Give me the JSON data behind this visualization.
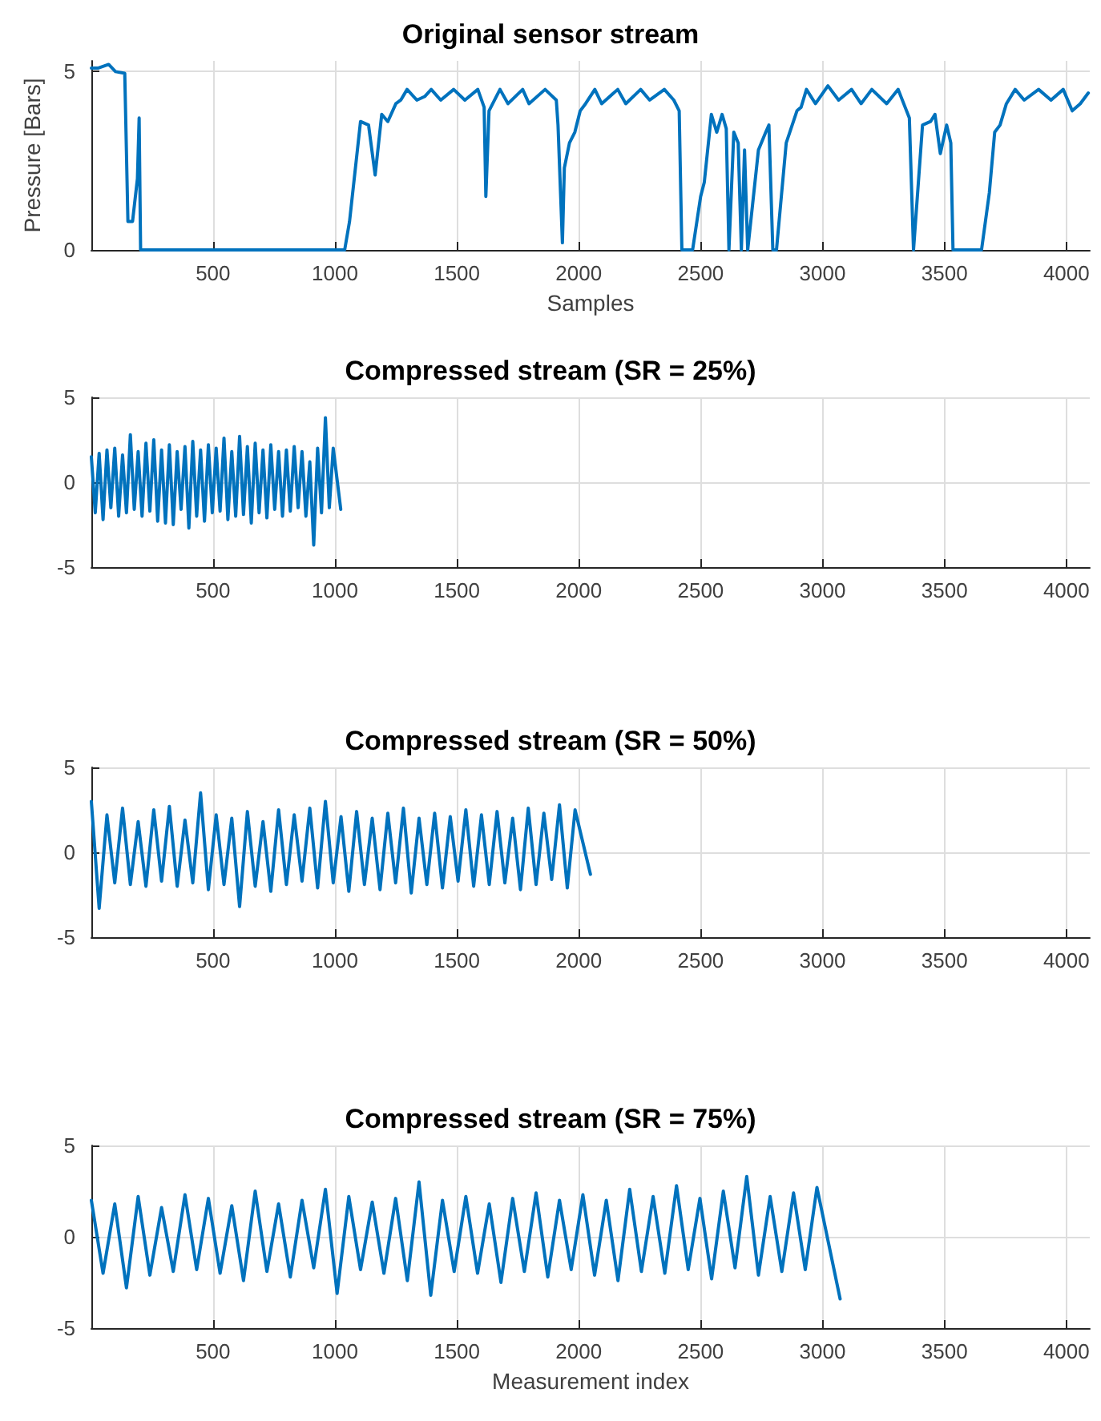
{
  "chart_data": [
    {
      "type": "line",
      "title": "Original sensor stream",
      "xlabel": "Samples",
      "ylabel": "Pressure [Bars]",
      "color": "#0072bd",
      "grid": true,
      "xlim": [
        1,
        4096
      ],
      "xticks": [
        500,
        1000,
        1500,
        2000,
        2500,
        3000,
        3500,
        4000
      ],
      "ylim": [
        0,
        5.3
      ],
      "yticks": [
        0,
        5
      ],
      "x": [
        1,
        30,
        72,
        100,
        138,
        151,
        170,
        190,
        197,
        203,
        600,
        1040,
        1060,
        1105,
        1138,
        1165,
        1192,
        1217,
        1250,
        1270,
        1296,
        1336,
        1368,
        1395,
        1434,
        1487,
        1533,
        1586,
        1612,
        1619,
        1632,
        1677,
        1710,
        1770,
        1796,
        1862,
        1908,
        1915,
        1933,
        1941,
        1962,
        1984,
        2006,
        2028,
        2066,
        2094,
        2160,
        2193,
        2254,
        2291,
        2351,
        2390,
        2412,
        2423,
        2467,
        2500,
        2515,
        2544,
        2566,
        2588,
        2605,
        2616,
        2636,
        2654,
        2667,
        2680,
        2693,
        2737,
        2767,
        2780,
        2796,
        2811,
        2851,
        2895,
        2912,
        2934,
        2971,
        3022,
        3066,
        3119,
        3158,
        3202,
        3263,
        3310,
        3356,
        3373,
        3410,
        3443,
        3461,
        3483,
        3509,
        3526,
        3535,
        3652,
        3684,
        3706,
        3728,
        3754,
        3790,
        3827,
        3886,
        3937,
        3987,
        4024,
        4057,
        4090
      ],
      "values": [
        5.1,
        5.1,
        5.2,
        5.0,
        4.95,
        0.8,
        0.8,
        2.0,
        3.7,
        0,
        0,
        0,
        0.8,
        3.6,
        3.5,
        2.1,
        3.8,
        3.6,
        4.1,
        4.2,
        4.5,
        4.2,
        4.3,
        4.5,
        4.2,
        4.5,
        4.2,
        4.5,
        4.0,
        1.5,
        3.9,
        4.5,
        4.1,
        4.5,
        4.1,
        4.5,
        4.2,
        3.5,
        0.2,
        2.3,
        3.0,
        3.3,
        3.9,
        4.1,
        4.5,
        4.1,
        4.5,
        4.1,
        4.5,
        4.2,
        4.5,
        4.2,
        3.9,
        0,
        0,
        1.5,
        1.9,
        3.8,
        3.3,
        3.8,
        3.4,
        0,
        3.3,
        3.0,
        0,
        2.8,
        0,
        2.8,
        3.3,
        3.5,
        0,
        0,
        3.0,
        3.9,
        4.0,
        4.5,
        4.1,
        4.6,
        4.2,
        4.5,
        4.1,
        4.5,
        4.1,
        4.5,
        3.7,
        0,
        3.5,
        3.6,
        3.8,
        2.7,
        3.5,
        3.0,
        0,
        0,
        1.6,
        3.3,
        3.5,
        4.1,
        4.5,
        4.2,
        4.5,
        4.2,
        4.5,
        3.9,
        4.1,
        4.4
      ]
    },
    {
      "type": "line",
      "title": "Compressed stream (SR = 25%)",
      "color": "#0072bd",
      "grid": true,
      "xlim": [
        1,
        4096
      ],
      "xticks": [
        500,
        1000,
        1500,
        2000,
        2500,
        3000,
        3500,
        4000
      ],
      "ylim": [
        -5,
        5
      ],
      "yticks": [
        -5,
        0,
        5
      ],
      "x": [
        1,
        17,
        33,
        49,
        65,
        81,
        97,
        113,
        129,
        145,
        161,
        177,
        193,
        209,
        225,
        241,
        257,
        273,
        289,
        305,
        321,
        337,
        353,
        369,
        385,
        401,
        417,
        433,
        449,
        465,
        481,
        497,
        513,
        529,
        545,
        561,
        577,
        593,
        609,
        625,
        641,
        657,
        673,
        689,
        705,
        721,
        737,
        753,
        769,
        785,
        801,
        817,
        833,
        849,
        865,
        881,
        897,
        913,
        929,
        945,
        961,
        977,
        993,
        1024
      ],
      "values": [
        1.5,
        -1.8,
        1.7,
        -2.2,
        1.9,
        -1.5,
        2.0,
        -2.0,
        1.6,
        -1.8,
        2.8,
        -1.6,
        1.8,
        -2.0,
        2.3,
        -1.7,
        2.5,
        -2.3,
        1.9,
        -2.4,
        2.2,
        -2.5,
        1.8,
        -1.6,
        2.1,
        -2.7,
        2.4,
        -2.0,
        1.9,
        -2.3,
        2.2,
        -1.8,
        2.0,
        -1.7,
        2.6,
        -2.2,
        1.8,
        -2.0,
        2.7,
        -1.9,
        2.1,
        -2.4,
        2.3,
        -1.8,
        1.9,
        -2.1,
        2.2,
        -1.6,
        1.8,
        -2.0,
        1.9,
        -1.7,
        2.1,
        -1.5,
        1.8,
        -2.0,
        1.2,
        -3.7,
        2.0,
        -1.8,
        3.8,
        -1.5,
        2.0,
        -1.6
      ]
    },
    {
      "type": "line",
      "title": "Compressed stream (SR = 50%)",
      "color": "#0072bd",
      "grid": true,
      "xlim": [
        1,
        4096
      ],
      "xticks": [
        500,
        1000,
        1500,
        2000,
        2500,
        3000,
        3500,
        4000
      ],
      "ylim": [
        -5,
        5
      ],
      "yticks": [
        -5,
        0,
        5
      ],
      "x": [
        1,
        33,
        65,
        97,
        129,
        161,
        193,
        225,
        257,
        289,
        321,
        353,
        385,
        417,
        449,
        481,
        513,
        545,
        577,
        609,
        641,
        673,
        705,
        737,
        769,
        801,
        833,
        865,
        897,
        929,
        961,
        993,
        1025,
        1057,
        1089,
        1121,
        1153,
        1185,
        1217,
        1249,
        1281,
        1313,
        1345,
        1377,
        1409,
        1441,
        1473,
        1505,
        1537,
        1569,
        1601,
        1633,
        1665,
        1697,
        1729,
        1761,
        1793,
        1825,
        1857,
        1889,
        1921,
        1953,
        1985,
        2048
      ],
      "values": [
        3.0,
        -3.3,
        2.2,
        -1.8,
        2.6,
        -1.9,
        1.8,
        -2.0,
        2.5,
        -1.7,
        2.7,
        -2.0,
        1.9,
        -1.8,
        3.5,
        -2.2,
        2.2,
        -1.9,
        2.0,
        -3.2,
        2.4,
        -2.0,
        1.8,
        -2.3,
        2.5,
        -1.9,
        2.2,
        -1.7,
        2.6,
        -2.1,
        3.0,
        -1.8,
        2.1,
        -2.3,
        2.4,
        -1.9,
        2.0,
        -2.2,
        2.3,
        -1.8,
        2.6,
        -2.4,
        2.0,
        -1.9,
        2.3,
        -2.1,
        2.1,
        -1.7,
        2.5,
        -2.0,
        2.2,
        -1.9,
        2.4,
        -1.8,
        2.0,
        -2.2,
        2.6,
        -1.9,
        2.3,
        -1.6,
        2.8,
        -2.1,
        2.5,
        -1.3
      ]
    },
    {
      "type": "line",
      "title": "Compressed stream (SR = 75%)",
      "xlabel": "Measurement index",
      "color": "#0072bd",
      "grid": true,
      "xlim": [
        1,
        4096
      ],
      "xticks": [
        500,
        1000,
        1500,
        2000,
        2500,
        3000,
        3500,
        4000
      ],
      "ylim": [
        -5,
        5
      ],
      "yticks": [
        -5,
        0,
        5
      ],
      "x": [
        1,
        49,
        97,
        145,
        193,
        241,
        289,
        337,
        385,
        433,
        481,
        529,
        577,
        625,
        673,
        721,
        769,
        817,
        865,
        913,
        961,
        1009,
        1057,
        1105,
        1153,
        1201,
        1249,
        1297,
        1345,
        1393,
        1441,
        1489,
        1537,
        1585,
        1633,
        1681,
        1729,
        1777,
        1825,
        1873,
        1921,
        1969,
        2017,
        2065,
        2113,
        2161,
        2209,
        2257,
        2305,
        2353,
        2401,
        2449,
        2497,
        2545,
        2593,
        2641,
        2689,
        2737,
        2785,
        2833,
        2881,
        2929,
        2977,
        3072
      ],
      "values": [
        2.0,
        -2.0,
        1.8,
        -2.8,
        2.2,
        -2.1,
        1.6,
        -1.9,
        2.3,
        -1.8,
        2.1,
        -2.0,
        1.7,
        -2.4,
        2.5,
        -1.9,
        1.8,
        -2.2,
        2.0,
        -1.7,
        2.6,
        -3.1,
        2.2,
        -1.8,
        1.9,
        -2.0,
        2.1,
        -2.4,
        3.0,
        -3.2,
        2.0,
        -1.9,
        2.2,
        -2.0,
        1.8,
        -2.5,
        2.1,
        -1.9,
        2.4,
        -2.2,
        2.0,
        -1.8,
        2.3,
        -2.1,
        2.0,
        -2.4,
        2.6,
        -1.9,
        2.2,
        -2.0,
        2.8,
        -1.8,
        2.1,
        -2.3,
        2.5,
        -1.7,
        3.3,
        -2.1,
        2.2,
        -1.9,
        2.4,
        -1.8,
        2.7,
        -3.4
      ]
    }
  ]
}
